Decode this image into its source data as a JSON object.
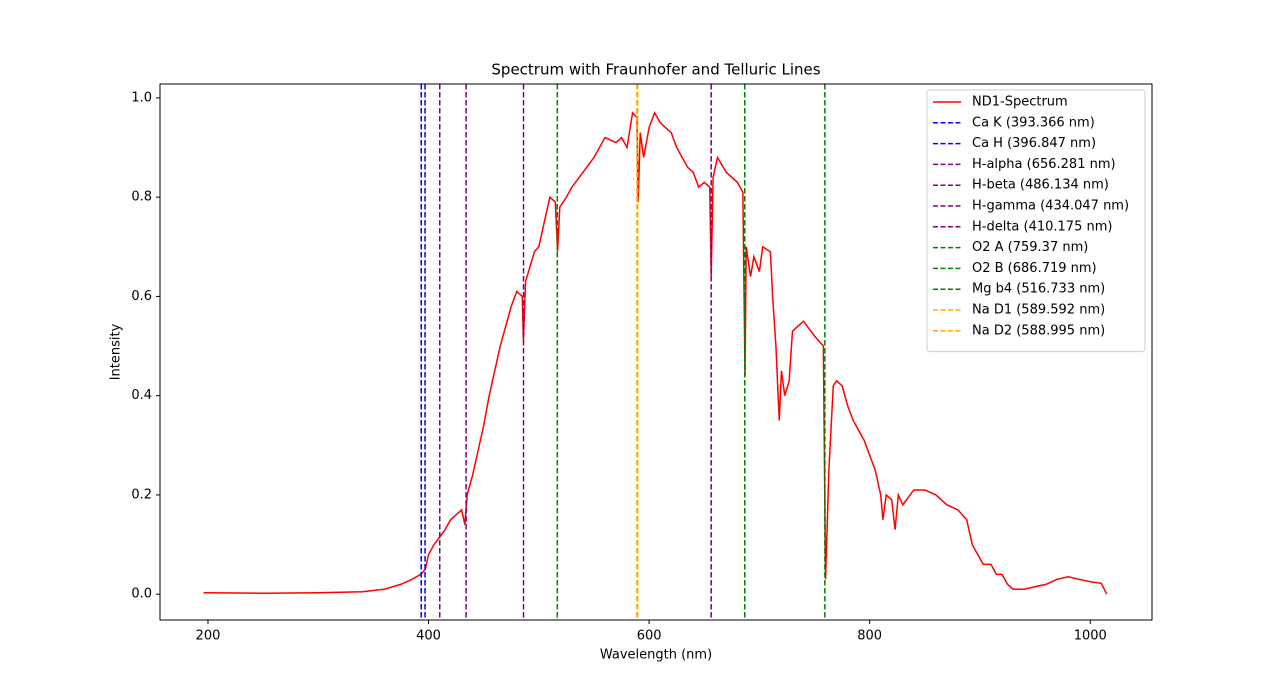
{
  "chart_data": {
    "type": "line",
    "title": "Spectrum with Fraunhofer and Telluric Lines",
    "xlabel": "Wavelength (nm)",
    "ylabel": "Intensity",
    "xlim": [
      156.5,
      1056
    ],
    "ylim": [
      -0.052,
      1.028
    ],
    "xticks": [
      200,
      400,
      600,
      800,
      1000
    ],
    "yticks": [
      {
        "value": 0,
        "label": "0.0"
      },
      0.2,
      0.4,
      0.6,
      0.8,
      {
        "value": 1,
        "label": "1.0"
      }
    ],
    "legend": "upper right",
    "series": [
      {
        "name": "ND1-Spectrum",
        "color": "#ff0000",
        "x": [
          196,
          250,
          300,
          340,
          360,
          375,
          385,
          393,
          397,
          400,
          405,
          410,
          415,
          420,
          425,
          430,
          433,
          435,
          440,
          445,
          450,
          455,
          460,
          465,
          470,
          475,
          480,
          485,
          486,
          488,
          492,
          496,
          500,
          505,
          510,
          515,
          517,
          519,
          525,
          530,
          540,
          550,
          560,
          570,
          575,
          580,
          585,
          589,
          590,
          592,
          595,
          600,
          605,
          610,
          615,
          620,
          625,
          630,
          635,
          640,
          645,
          650,
          655,
          656.3,
          658,
          662,
          670,
          680,
          685,
          687,
          688,
          692,
          695,
          700,
          703,
          710,
          712,
          715,
          718,
          720,
          723,
          727,
          730,
          740,
          750,
          758,
          760,
          763,
          767,
          770,
          775,
          780,
          785,
          790,
          795,
          800,
          805,
          810,
          812,
          815,
          820,
          823,
          826,
          830,
          840,
          850,
          860,
          870,
          880,
          888,
          893,
          898,
          903,
          910,
          915,
          920,
          925,
          930,
          940,
          950,
          960,
          970,
          980,
          990,
          1000,
          1010,
          1015
        ],
        "values": [
          0.003,
          0.002,
          0.003,
          0.005,
          0.01,
          0.02,
          0.03,
          0.04,
          0.05,
          0.08,
          0.1,
          0.115,
          0.13,
          0.15,
          0.16,
          0.17,
          0.14,
          0.2,
          0.24,
          0.29,
          0.34,
          0.4,
          0.45,
          0.5,
          0.54,
          0.58,
          0.61,
          0.6,
          0.51,
          0.63,
          0.66,
          0.69,
          0.7,
          0.75,
          0.8,
          0.79,
          0.69,
          0.78,
          0.8,
          0.82,
          0.85,
          0.88,
          0.92,
          0.91,
          0.92,
          0.9,
          0.97,
          0.96,
          0.79,
          0.93,
          0.88,
          0.94,
          0.97,
          0.95,
          0.94,
          0.93,
          0.9,
          0.88,
          0.86,
          0.85,
          0.82,
          0.83,
          0.82,
          0.64,
          0.84,
          0.88,
          0.85,
          0.83,
          0.81,
          0.44,
          0.7,
          0.64,
          0.68,
          0.65,
          0.7,
          0.69,
          0.6,
          0.5,
          0.35,
          0.45,
          0.4,
          0.43,
          0.53,
          0.55,
          0.52,
          0.5,
          0.03,
          0.25,
          0.42,
          0.43,
          0.42,
          0.38,
          0.35,
          0.33,
          0.31,
          0.28,
          0.25,
          0.2,
          0.15,
          0.2,
          0.19,
          0.13,
          0.2,
          0.18,
          0.21,
          0.21,
          0.2,
          0.18,
          0.17,
          0.15,
          0.1,
          0.08,
          0.06,
          0.06,
          0.04,
          0.04,
          0.02,
          0.01,
          0.01,
          0.015,
          0.02,
          0.03,
          0.035,
          0.03,
          0.025,
          0.022,
          0
        ]
      }
    ],
    "lines": [
      {
        "name": "Ca K (393.366 nm)",
        "x": 393.366,
        "color": "#0000ff"
      },
      {
        "name": "Ca H (396.847 nm)",
        "x": 396.847,
        "color": "#0000ff"
      },
      {
        "name": "H-alpha (656.281 nm)",
        "x": 656.281,
        "color": "#800080"
      },
      {
        "name": "H-beta (486.134 nm)",
        "x": 486.134,
        "color": "#800080"
      },
      {
        "name": "H-gamma (434.047 nm)",
        "x": 434.047,
        "color": "#800080"
      },
      {
        "name": "H-delta (410.175 nm)",
        "x": 410.175,
        "color": "#800080"
      },
      {
        "name": "O2 A (759.37 nm)",
        "x": 759.37,
        "color": "#008000"
      },
      {
        "name": "O2 B (686.719 nm)",
        "x": 686.719,
        "color": "#008000"
      },
      {
        "name": "Mg b4 (516.733 nm)",
        "x": 516.733,
        "color": "#008000"
      },
      {
        "name": "Na D1 (589.592 nm)",
        "x": 589.592,
        "color": "#ffa500"
      },
      {
        "name": "Na D2 (588.995 nm)",
        "x": 588.995,
        "color": "#ffa500"
      }
    ]
  }
}
